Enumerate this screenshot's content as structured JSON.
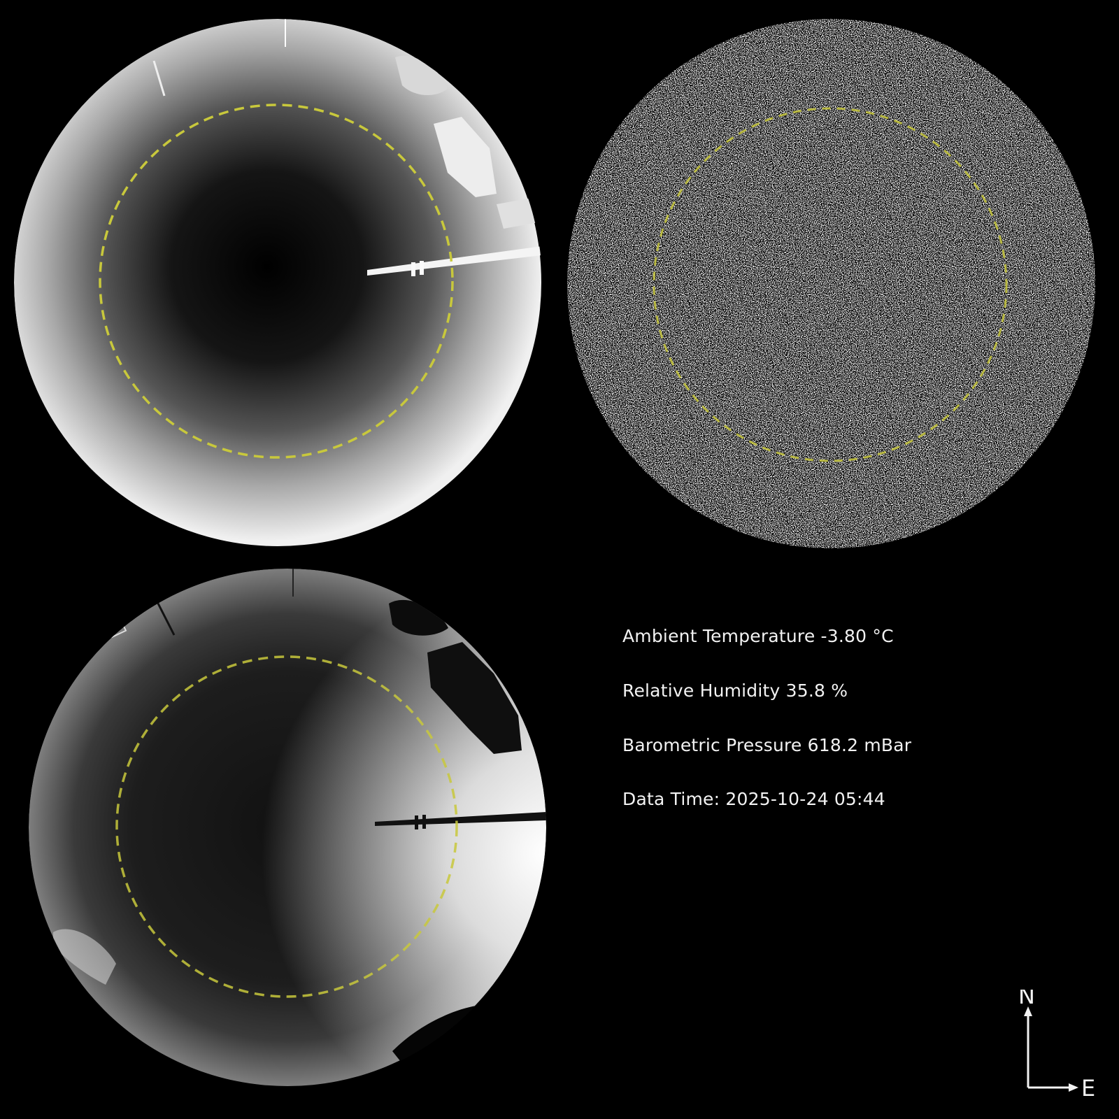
{
  "colors": {
    "background": "#000000",
    "guide_circle": "#c8c83c",
    "text": "#f2f2f2"
  },
  "panels": {
    "infrared": {
      "icon": "sky-ir-image"
    },
    "difference": {
      "icon": "sky-noise-image"
    },
    "visible": {
      "icon": "sky-visible-image"
    }
  },
  "readouts": {
    "temperature": "Ambient Temperature -3.80 °C",
    "humidity": "Relative Humidity 35.8 %",
    "pressure": "Barometric Pressure 618.2 mBar",
    "time": "Data Time: 2025-10-24 05:44"
  },
  "compass": {
    "north": "N",
    "east": "E"
  }
}
